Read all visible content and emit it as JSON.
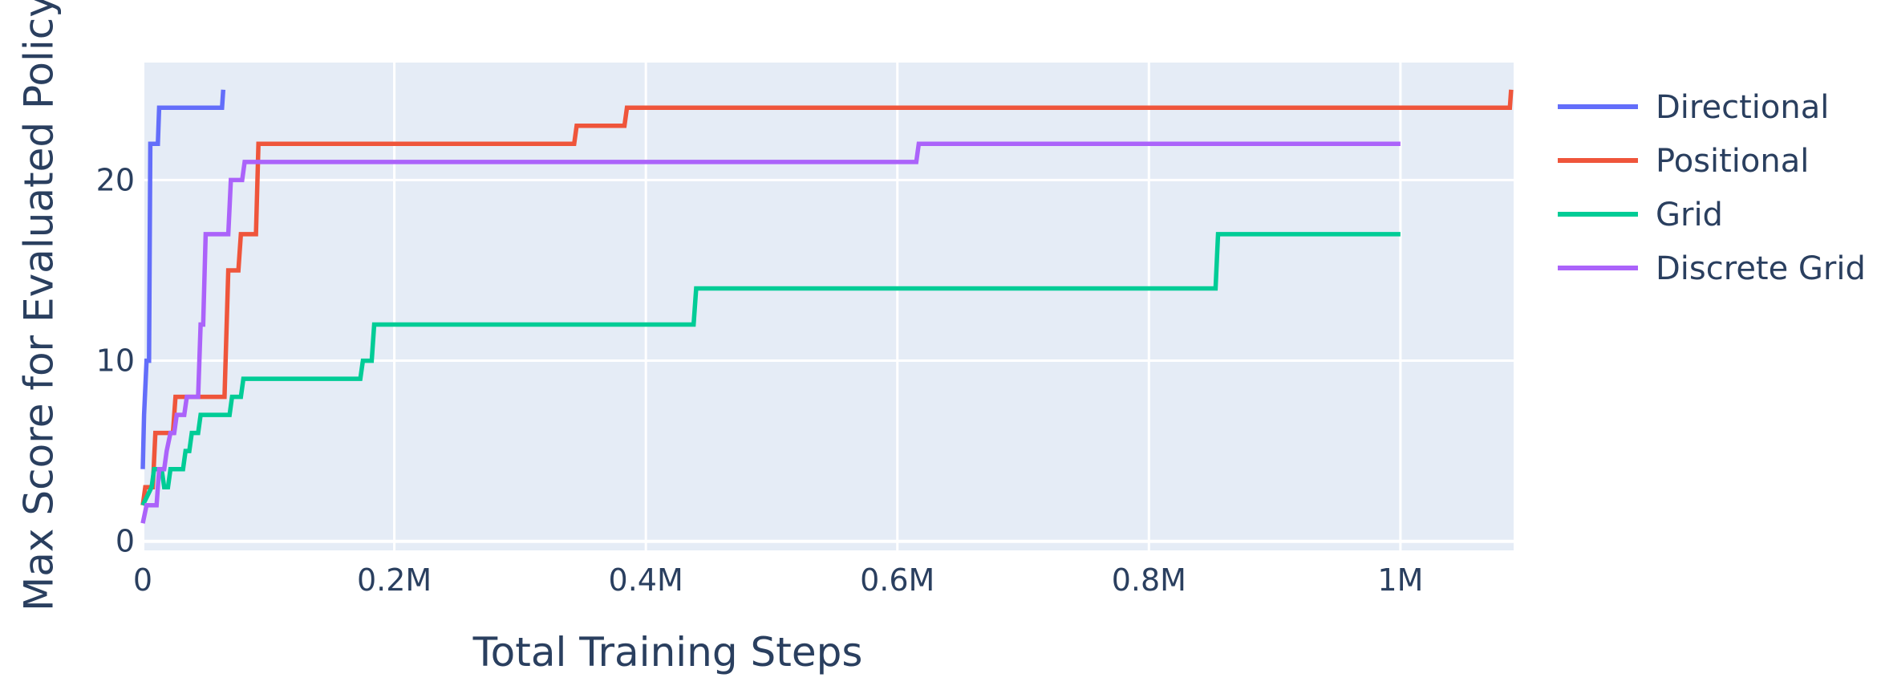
{
  "colors": {
    "plot_background": "#E5ECF6",
    "grid": "#ffffff",
    "text": "#2a3f5f"
  },
  "chart_data": {
    "type": "line",
    "line_shape": "step",
    "xlabel": "Total Training Steps",
    "ylabel": "Max Score for Evaluated Policy",
    "xlim": [
      0,
      1090000
    ],
    "ylim": [
      -0.5,
      26.5
    ],
    "x_ticks": [
      {
        "value": 0,
        "label": "0"
      },
      {
        "value": 200000,
        "label": "0.2M"
      },
      {
        "value": 400000,
        "label": "0.4M"
      },
      {
        "value": 600000,
        "label": "0.6M"
      },
      {
        "value": 800000,
        "label": "0.8M"
      },
      {
        "value": 1000000,
        "label": "1M"
      }
    ],
    "y_ticks": [
      {
        "value": 0,
        "label": "0"
      },
      {
        "value": 10,
        "label": "10"
      },
      {
        "value": 20,
        "label": "20"
      }
    ],
    "grid": true,
    "legend_position": "right",
    "series": [
      {
        "name": "Directional",
        "color": "#636EFA",
        "points": [
          [
            0,
            4
          ],
          [
            1000,
            7
          ],
          [
            3000,
            10
          ],
          [
            5000,
            10
          ],
          [
            6000,
            22
          ],
          [
            12000,
            22
          ],
          [
            13000,
            24
          ],
          [
            63000,
            24
          ],
          [
            64000,
            25
          ]
        ]
      },
      {
        "name": "Positional",
        "color": "#EF553B",
        "points": [
          [
            0,
            2
          ],
          [
            2000,
            3
          ],
          [
            8000,
            3
          ],
          [
            10000,
            6
          ],
          [
            24000,
            6
          ],
          [
            26000,
            8
          ],
          [
            65000,
            8
          ],
          [
            68000,
            15
          ],
          [
            76000,
            15
          ],
          [
            78000,
            17
          ],
          [
            90000,
            17
          ],
          [
            92000,
            22
          ],
          [
            343000,
            22
          ],
          [
            345000,
            23
          ],
          [
            383000,
            23
          ],
          [
            385000,
            24
          ],
          [
            1087000,
            24
          ],
          [
            1088000,
            25
          ]
        ]
      },
      {
        "name": "Grid",
        "color": "#00CC96",
        "points": [
          [
            0,
            2
          ],
          [
            7000,
            3
          ],
          [
            9000,
            4
          ],
          [
            15000,
            4
          ],
          [
            17000,
            3
          ],
          [
            20000,
            3
          ],
          [
            22000,
            4
          ],
          [
            32000,
            4
          ],
          [
            34000,
            5
          ],
          [
            37000,
            5
          ],
          [
            39000,
            6
          ],
          [
            44000,
            6
          ],
          [
            46000,
            7
          ],
          [
            69000,
            7
          ],
          [
            71000,
            8
          ],
          [
            78000,
            8
          ],
          [
            80000,
            9
          ],
          [
            173000,
            9
          ],
          [
            175000,
            10
          ],
          [
            182000,
            10
          ],
          [
            184000,
            12
          ],
          [
            438000,
            12
          ],
          [
            440000,
            14
          ],
          [
            853000,
            14
          ],
          [
            855000,
            17
          ],
          [
            1000000,
            17
          ]
        ]
      },
      {
        "name": "Discrete Grid",
        "color": "#AB63FA",
        "points": [
          [
            0,
            1
          ],
          [
            3000,
            2
          ],
          [
            11000,
            2
          ],
          [
            13000,
            4
          ],
          [
            17000,
            4
          ],
          [
            19000,
            5
          ],
          [
            22000,
            6
          ],
          [
            25000,
            6
          ],
          [
            27000,
            7
          ],
          [
            33000,
            7
          ],
          [
            35000,
            8
          ],
          [
            44000,
            8
          ],
          [
            46000,
            12
          ],
          [
            48000,
            12
          ],
          [
            50000,
            17
          ],
          [
            68000,
            17
          ],
          [
            70000,
            20
          ],
          [
            79000,
            20
          ],
          [
            81000,
            21
          ],
          [
            615000,
            21
          ],
          [
            617000,
            22
          ],
          [
            1000000,
            22
          ]
        ]
      }
    ]
  }
}
